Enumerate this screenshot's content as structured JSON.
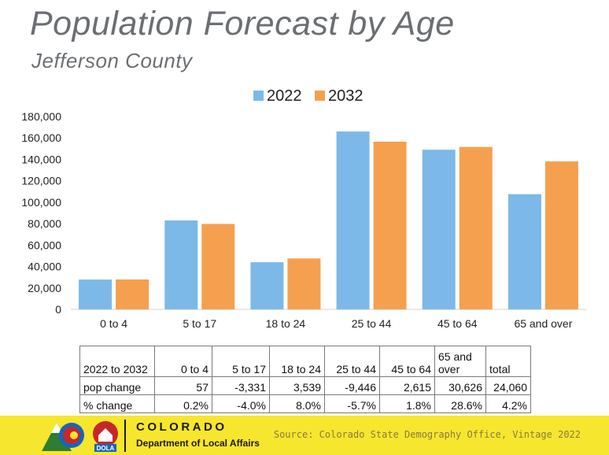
{
  "header": {
    "title": "Population Forecast by Age",
    "subtitle": "Jefferson County"
  },
  "chart_data": {
    "type": "bar",
    "categories": [
      "0 to 4",
      "5 to 17",
      "18 to 24",
      "25 to 44",
      "45 to 64",
      "65 and over"
    ],
    "series": [
      {
        "name": "2022",
        "color": "#7cb9e8",
        "values": [
          27800,
          83000,
          44000,
          166000,
          149000,
          107500
        ]
      },
      {
        "name": "2032",
        "color": "#f5a04f",
        "values": [
          27900,
          79700,
          47500,
          156500,
          151600,
          138100
        ]
      }
    ],
    "ylim": [
      0,
      180000
    ],
    "yticks": [
      0,
      20000,
      40000,
      60000,
      80000,
      100000,
      120000,
      140000,
      160000,
      180000
    ],
    "ytick_labels": [
      "0",
      "20,000",
      "40,000",
      "60,000",
      "80,000",
      "100,000",
      "120,000",
      "140,000",
      "160,000",
      "180,000"
    ],
    "legend": "top",
    "grid": false
  },
  "table": {
    "header": [
      "2022 to 2032",
      "0 to 4",
      "5 to 17",
      "18 to 24",
      "25 to 44",
      "45 to 64",
      "65 and over",
      "total"
    ],
    "rows": [
      [
        "pop change",
        "57",
        "-3,331",
        "3,539",
        "-9,446",
        "2,615",
        "30,626",
        "24,060"
      ],
      [
        "% change",
        "0.2%",
        "-4.0%",
        "8.0%",
        "-5.7%",
        "1.8%",
        "28.6%",
        "4.2%"
      ]
    ]
  },
  "footer": {
    "org": "COLORADO",
    "dept": "Department of Local Affairs",
    "dola": "DOLA",
    "source": "Source: Colorado State Demography Office, Vintage 2022"
  },
  "colors": {
    "footer_bg": "#f7e62e",
    "title": "#6b6f73"
  }
}
